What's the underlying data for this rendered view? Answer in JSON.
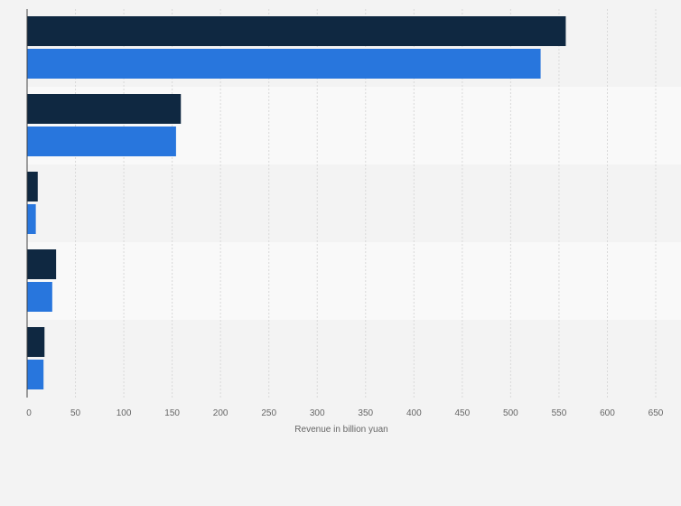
{
  "chart_data": {
    "type": "bar",
    "orientation": "horizontal",
    "title": "",
    "xlabel": "Revenue in billion yuan",
    "ylabel": "",
    "categories": [
      "",
      "",
      "",
      "",
      ""
    ],
    "series": [
      {
        "color": "#0f2841",
        "values": [
          557,
          159,
          11,
          30,
          18
        ]
      },
      {
        "color": "#2876dd",
        "values": [
          531,
          154,
          9,
          26,
          17
        ]
      }
    ],
    "xlim": [
      0,
      650
    ],
    "xticks": [
      0,
      50,
      100,
      150,
      200,
      250,
      300,
      350,
      400,
      450,
      500,
      550,
      600,
      650
    ],
    "grid": true,
    "legend": "none"
  }
}
